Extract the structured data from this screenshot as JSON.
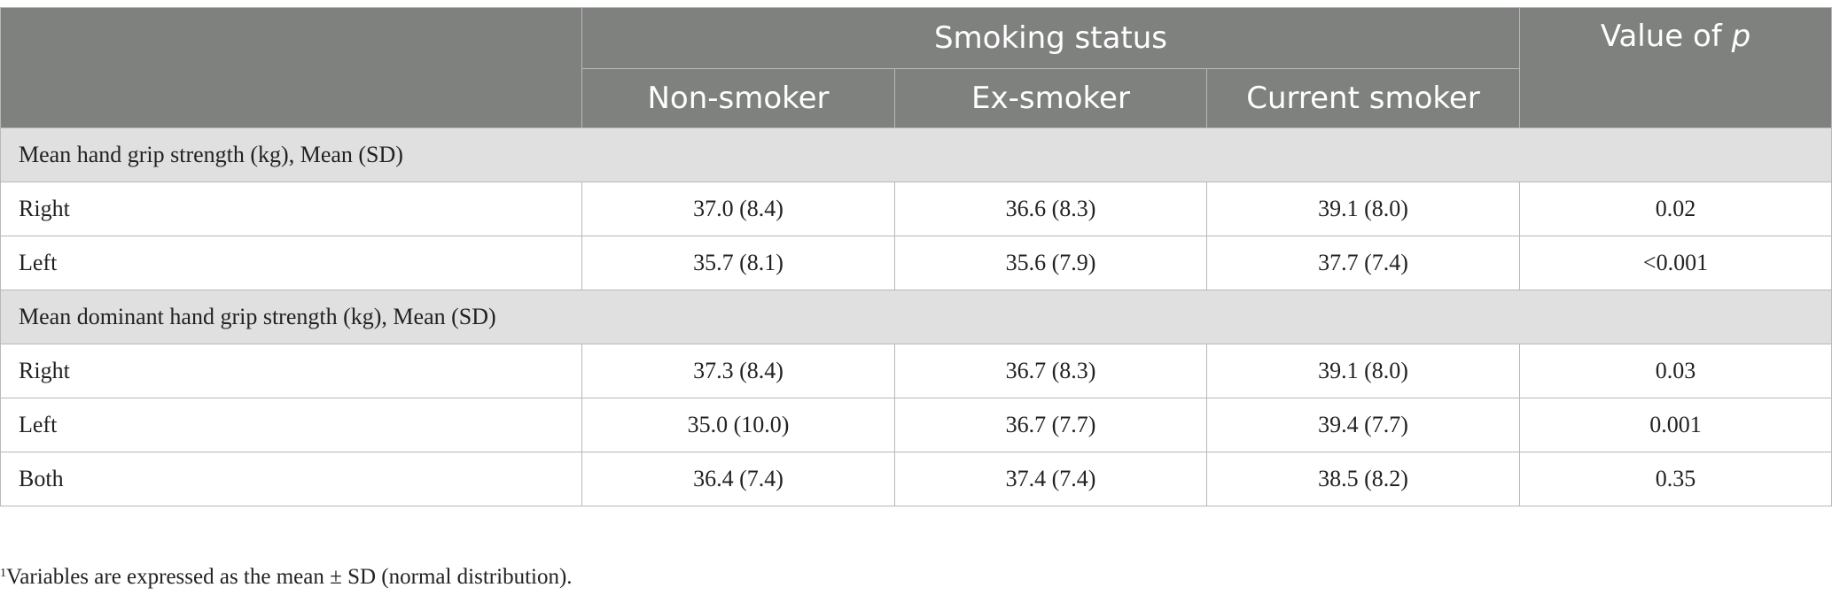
{
  "header": {
    "group_label": "Smoking status",
    "p_label_prefix": "Value of ",
    "p_label_italic": "p",
    "columns": [
      "Non-smoker",
      "Ex-smoker",
      "Current smoker"
    ]
  },
  "sections": [
    {
      "title": "Mean hand grip strength (kg), Mean (SD)",
      "rows": [
        {
          "label": "Right",
          "values": [
            "37.0 (8.4)",
            "36.6 (8.3)",
            "39.1 (8.0)"
          ],
          "p": "0.02"
        },
        {
          "label": "Left",
          "values": [
            "35.7 (8.1)",
            "35.6 (7.9)",
            "37.7 (7.4)"
          ],
          "p": "<0.001"
        }
      ]
    },
    {
      "title": "Mean dominant hand grip strength (kg), Mean (SD)",
      "rows": [
        {
          "label": "Right",
          "values": [
            "37.3 (8.4)",
            "36.7 (8.3)",
            "39.1 (8.0)"
          ],
          "p": "0.03"
        },
        {
          "label": "Left",
          "values": [
            "35.0 (10.0)",
            "36.7 (7.7)",
            "39.4 (7.7)"
          ],
          "p": "0.001"
        },
        {
          "label": "Both",
          "values": [
            "36.4 (7.4)",
            "37.4 (7.4)",
            "38.5 (8.2)"
          ],
          "p": "0.35"
        }
      ]
    }
  ],
  "footnote": {
    "marker": "1",
    "text": "Variables are expressed as the mean ± SD (normal distribution)."
  }
}
